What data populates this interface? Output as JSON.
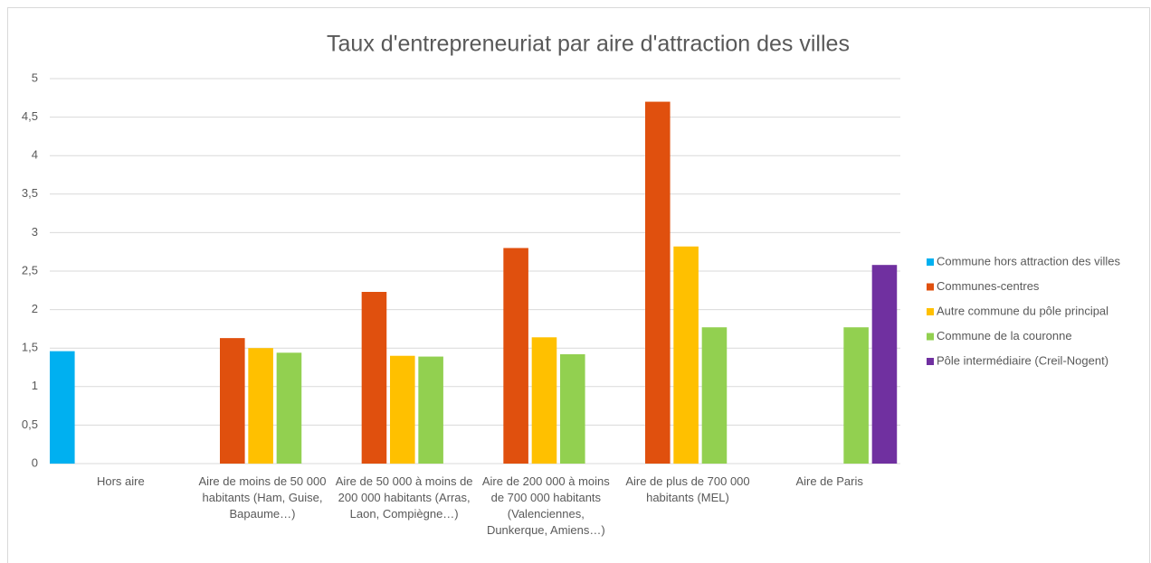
{
  "chart_data": {
    "type": "bar",
    "title": "Taux d'entrepreneuriat par aire d'attraction des villes",
    "categories": [
      "Hors aire",
      "Aire de moins de 50 000 habitants (Ham, Guise, Bapaume…)",
      "Aire de 50 000 à moins de 200 000 habitants (Arras, Laon, Compiègne…)",
      "Aire de 200 000 à moins de 700 000 habitants (Valenciennes, Dunkerque, Amiens…)",
      "Aire de plus de 700 000 habitants (MEL)",
      "Aire de Paris"
    ],
    "series": [
      {
        "name": "Commune hors attraction des villes",
        "color": "#00b0f0",
        "values": [
          1.46,
          null,
          null,
          null,
          null,
          null
        ]
      },
      {
        "name": "Communes-centres",
        "color": "#e0500e",
        "values": [
          null,
          1.63,
          2.23,
          2.8,
          4.7,
          null
        ]
      },
      {
        "name": "Autre commune du pôle principal",
        "color": "#ffc000",
        "values": [
          null,
          1.5,
          1.4,
          1.64,
          2.82,
          null
        ]
      },
      {
        "name": "Commune de la couronne",
        "color": "#92d050",
        "values": [
          null,
          1.44,
          1.39,
          1.42,
          1.77,
          1.77
        ]
      },
      {
        "name": "Pôle intermédiaire (Creil-Nogent)",
        "color": "#7030a0",
        "values": [
          null,
          null,
          null,
          null,
          null,
          2.58
        ]
      }
    ],
    "ylim": [
      0,
      5
    ],
    "yticks": [
      0,
      {
        "value": 0.5,
        "label": "0,5"
      },
      1,
      {
        "value": 1.5,
        "label": "1,5"
      },
      2,
      {
        "value": 2.5,
        "label": "2,5"
      },
      3,
      {
        "value": 3.5,
        "label": "3,5"
      },
      4,
      {
        "value": 4.5,
        "label": "4,5"
      },
      5
    ],
    "grid": true,
    "legend": "right"
  }
}
